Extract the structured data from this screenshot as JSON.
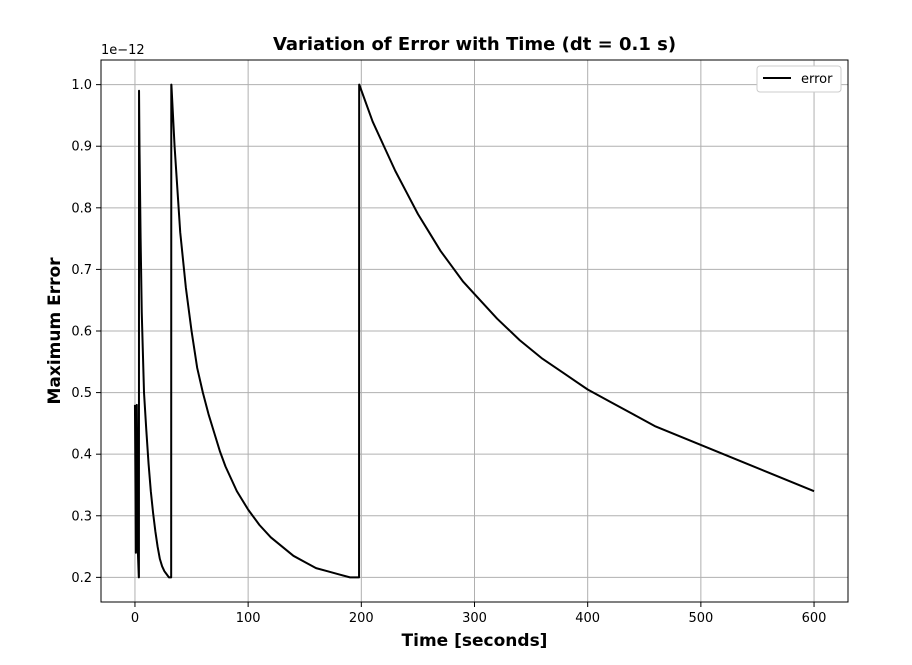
{
  "chart_data": {
    "type": "line",
    "title": "Variation of Error with Time (dt = 0.1 s)",
    "xlabel": "Time [seconds]",
    "ylabel": "Maximum Error",
    "y_offset_label": "1e−12",
    "xlim": [
      -30,
      630
    ],
    "ylim": [
      0.16,
      1.04
    ],
    "xticks": [
      0,
      100,
      200,
      300,
      400,
      500,
      600
    ],
    "yticks": [
      0.2,
      0.3,
      0.4,
      0.5,
      0.6,
      0.7,
      0.8,
      0.9,
      1.0
    ],
    "xtick_labels": [
      "0",
      "100",
      "200",
      "300",
      "400",
      "500",
      "600"
    ],
    "ytick_labels": [
      "0.2",
      "0.3",
      "0.4",
      "0.5",
      "0.6",
      "0.7",
      "0.8",
      "0.9",
      "1.0"
    ],
    "grid": true,
    "legend": {
      "position": "top-right",
      "entries": [
        "error"
      ]
    },
    "colors": {
      "line": "#000000",
      "grid": "#b0b0b0",
      "background": "#ffffff"
    },
    "series": [
      {
        "name": "error",
        "x": [
          0.0,
          0.8,
          1.6,
          2.6,
          3.4,
          3.5,
          3.6,
          4.0,
          5.0,
          6.0,
          8.0,
          10.0,
          12.0,
          14.0,
          16.0,
          18.0,
          20.0,
          22.0,
          24.0,
          26.0,
          28.0,
          30.0,
          32.0,
          32.1,
          32.2,
          35,
          40,
          45,
          50,
          55,
          60,
          65,
          70,
          75,
          80,
          90,
          100,
          110,
          120,
          130,
          140,
          150,
          160,
          170,
          180,
          190,
          198,
          198.1,
          198.2,
          210,
          220,
          230,
          240,
          250,
          260,
          270,
          280,
          290,
          300,
          320,
          340,
          360,
          380,
          400,
          420,
          440,
          460,
          480,
          500,
          520,
          540,
          560,
          580,
          600
        ],
        "y": [
          0.48,
          0.24,
          0.48,
          0.24,
          0.2,
          0.2,
          0.99,
          0.9,
          0.75,
          0.63,
          0.5,
          0.44,
          0.385,
          0.34,
          0.305,
          0.275,
          0.25,
          0.23,
          0.218,
          0.21,
          0.205,
          0.2,
          0.2,
          1.0,
          1.0,
          0.9,
          0.76,
          0.67,
          0.6,
          0.54,
          0.5,
          0.465,
          0.435,
          0.405,
          0.38,
          0.34,
          0.31,
          0.285,
          0.265,
          0.25,
          0.235,
          0.225,
          0.215,
          0.21,
          0.205,
          0.2,
          0.2,
          1.0,
          1.0,
          0.94,
          0.9,
          0.86,
          0.825,
          0.79,
          0.76,
          0.73,
          0.705,
          0.68,
          0.66,
          0.62,
          0.585,
          0.555,
          0.53,
          0.505,
          0.485,
          0.465,
          0.445,
          0.43,
          0.415,
          0.4,
          0.385,
          0.37,
          0.355,
          0.34
        ]
      }
    ]
  }
}
